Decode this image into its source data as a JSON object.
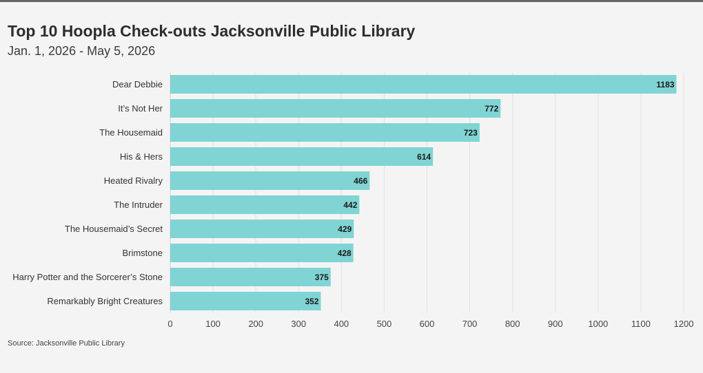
{
  "header": {
    "title": "Top 10 Hoopla Check-outs Jacksonville Public Library",
    "subtitle": "Jan. 1, 2026 - May 5, 2026"
  },
  "footer": {
    "source": "Source: Jacksonville Public Library"
  },
  "colors": {
    "bar": "#80d4d4",
    "grid": "#e2e2e2",
    "background": "#f4f4f4"
  },
  "chart_data": {
    "type": "bar",
    "orientation": "horizontal",
    "title": "Top 10 Hoopla Check-outs Jacksonville Public Library",
    "subtitle": "Jan. 1, 2026 - May 5, 2026",
    "categories": [
      "Dear Debbie",
      "It’s Not Her",
      "The Housemaid",
      "His & Hers",
      "Heated Rivalry",
      "The Intruder",
      "The Housemaid’s Secret",
      "Brimstone",
      "Harry Potter and the Sorcerer’s Stone",
      "Remarkably Bright Creatures"
    ],
    "values": [
      1183,
      772,
      723,
      614,
      466,
      442,
      429,
      428,
      375,
      352
    ],
    "xlim": [
      0,
      1200
    ],
    "xticks": [
      0,
      100,
      200,
      300,
      400,
      500,
      600,
      700,
      800,
      900,
      1000,
      1100,
      1200
    ],
    "xlabel": "",
    "ylabel": "",
    "grid": true,
    "data_labels": true
  }
}
